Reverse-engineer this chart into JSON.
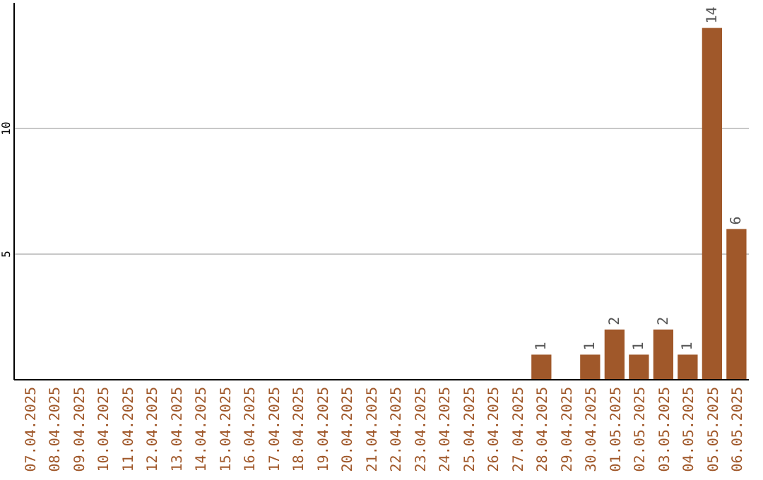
{
  "chart_data": {
    "type": "bar",
    "categories": [
      "07.04.2025",
      "08.04.2025",
      "09.04.2025",
      "10.04.2025",
      "11.04.2025",
      "12.04.2025",
      "13.04.2025",
      "14.04.2025",
      "15.04.2025",
      "16.04.2025",
      "17.04.2025",
      "18.04.2025",
      "19.04.2025",
      "20.04.2025",
      "21.04.2025",
      "22.04.2025",
      "23.04.2025",
      "24.04.2025",
      "25.04.2025",
      "26.04.2025",
      "27.04.2025",
      "28.04.2025",
      "29.04.2025",
      "30.04.2025",
      "01.05.2025",
      "02.05.2025",
      "03.05.2025",
      "04.05.2025",
      "05.05.2025",
      "06.05.2025"
    ],
    "values": [
      0,
      0,
      0,
      0,
      0,
      0,
      0,
      0,
      0,
      0,
      0,
      0,
      0,
      0,
      0,
      0,
      0,
      0,
      0,
      0,
      0,
      1,
      0,
      1,
      2,
      1,
      2,
      1,
      14,
      6
    ],
    "value_labels": [
      null,
      null,
      null,
      null,
      null,
      null,
      null,
      null,
      null,
      null,
      null,
      null,
      null,
      null,
      null,
      null,
      null,
      null,
      null,
      null,
      null,
      "1",
      null,
      "1",
      "2",
      "1",
      "2",
      "1",
      "14",
      "6"
    ],
    "color": "#a0582a",
    "ylim": [
      0,
      15
    ],
    "yticks": [
      5,
      10
    ],
    "grid": "y"
  }
}
